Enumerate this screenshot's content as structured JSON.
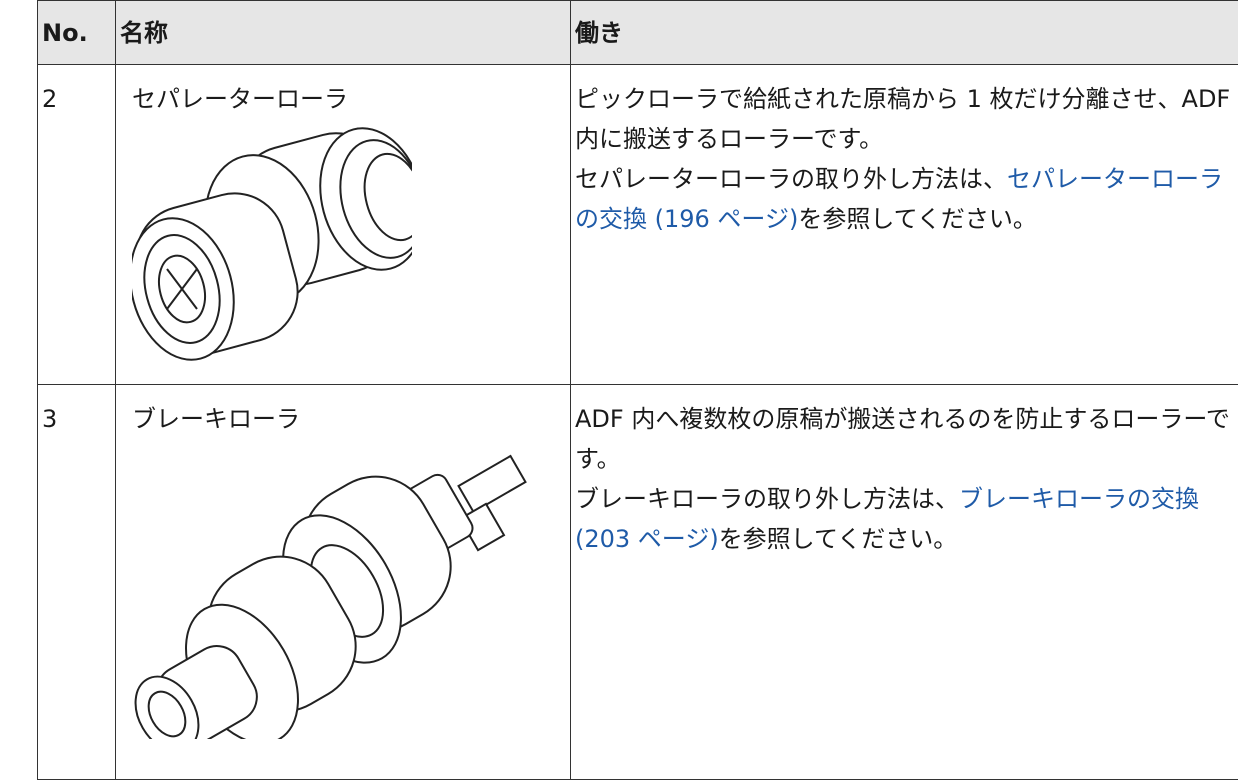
{
  "table": {
    "header": [
      "No.",
      "名称",
      "働き"
    ],
    "rows": [
      {
        "no": "2",
        "name": "セパレーターローラ",
        "description": [
          [
            {
              "text": "ピックローラで給紙された原稿から 1 枚だけ分離させ、ADF 内に搬送するローラーです。"
            }
          ],
          [
            {
              "text": "セパレーターローラの取り外し方法は、"
            },
            {
              "text": "セパレーターローラの交換 (196 ページ)",
              "link": true
            },
            {
              "text": "を参照してください。"
            }
          ]
        ]
      },
      {
        "no": "3",
        "name": "ブレーキローラ",
        "description": [
          [
            {
              "text": "ADF 内へ複数枚の原稿が搬送されるのを防止するローラーです。"
            }
          ],
          [
            {
              "text": "ブレーキローラの取り外し方法は、"
            },
            {
              "text": "ブレーキローラの交換 (203 ページ)",
              "link": true
            },
            {
              "text": "を参照してください。"
            }
          ]
        ]
      }
    ]
  }
}
